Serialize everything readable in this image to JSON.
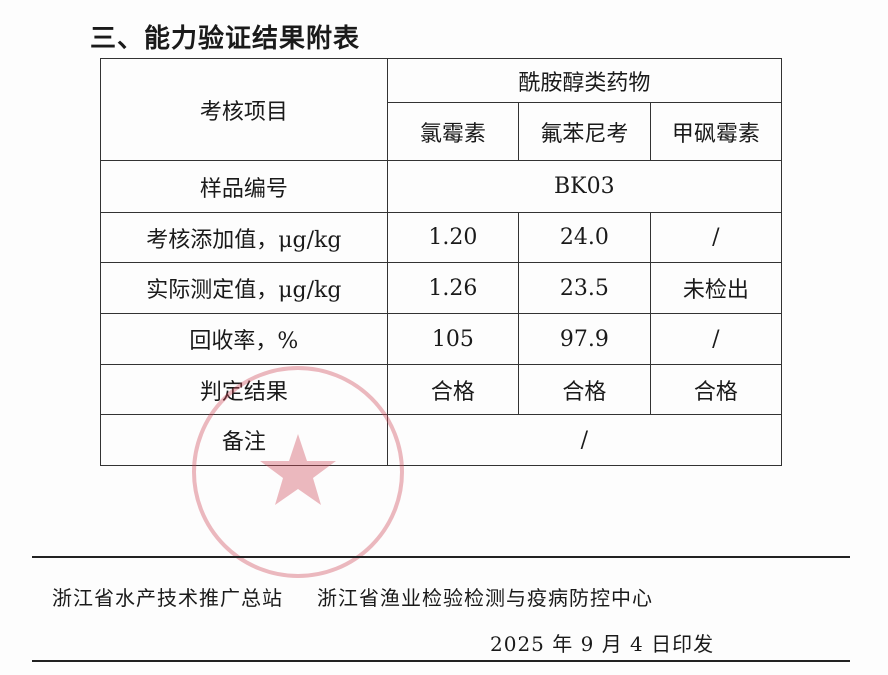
{
  "title": "三、能力验证结果附表",
  "table": {
    "item_header": "考核项目",
    "group_header": "酰胺醇类药物",
    "drugs": [
      "氯霉素",
      "氟苯尼考",
      "甲砜霉素"
    ],
    "sample_label": "样品编号",
    "sample_value": "BK03",
    "rows": [
      {
        "label": "考核添加值，μg/kg",
        "values": [
          "1.20",
          "24.0",
          "/"
        ]
      },
      {
        "label": "实际测定值，μg/kg",
        "values": [
          "1.26",
          "23.5",
          "未检出"
        ]
      },
      {
        "label": "回收率，%",
        "values": [
          "105",
          "97.9",
          "/"
        ]
      },
      {
        "label": "判定结果",
        "values": [
          "合格",
          "合格",
          "合格"
        ]
      }
    ],
    "remark_label": "备注",
    "remark_value": "/"
  },
  "stamp": {
    "color": "#d04a5a",
    "icon": "star-icon"
  },
  "footer": {
    "org1": "浙江省水产技术推广总站",
    "org2": "浙江省渔业检验检测与疫病防控中心",
    "date": "2025 年 9 月 4 日印发"
  }
}
